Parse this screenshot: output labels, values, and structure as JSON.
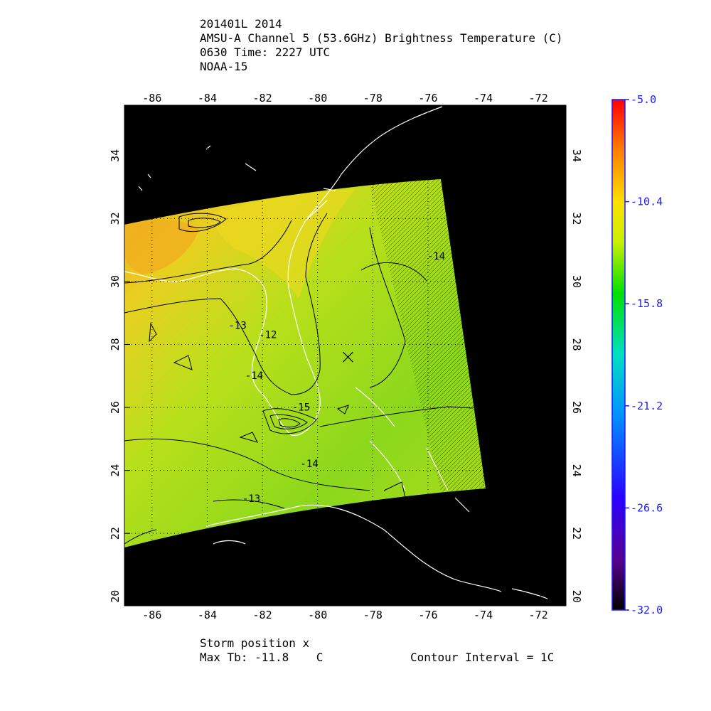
{
  "header": {
    "line1": "201401L 2014",
    "line2": "AMSU-A Channel 5 (53.6GHz) Brightness Temperature (C)",
    "line3": "0630 Time: 2227 UTC",
    "line4": "NOAA-15"
  },
  "map": {
    "lon_range": [
      -87,
      -71
    ],
    "lat_range": [
      19.7,
      35.6
    ],
    "lon_ticks": [
      -86,
      -84,
      -82,
      -80,
      -78,
      -76,
      -74,
      -72
    ],
    "lat_ticks": [
      20,
      22,
      24,
      26,
      28,
      30,
      32,
      34
    ],
    "lon_tick_labels": [
      "-86",
      "-84",
      "-82",
      "-80",
      "-78",
      "-76",
      "-74",
      "-72"
    ],
    "lat_tick_labels": [
      "20",
      "22",
      "24",
      "26",
      "28",
      "30",
      "32",
      "34"
    ],
    "grid": "dotted",
    "storm_position": {
      "lon": -78.9,
      "lat": 27.6,
      "marker": "x-mark"
    },
    "contour_labels": [
      {
        "text": "-12",
        "lon": -81.8,
        "lat": 28.2
      },
      {
        "text": "-13",
        "lon": -82.9,
        "lat": 28.5
      },
      {
        "text": "-14",
        "lon": -82.3,
        "lat": 26.9
      },
      {
        "text": "-15",
        "lon": -80.6,
        "lat": 25.9
      },
      {
        "text": "-14",
        "lon": -80.3,
        "lat": 24.1
      },
      {
        "text": "-13",
        "lon": -82.4,
        "lat": 23.0
      },
      {
        "text": "-14",
        "lon": -75.7,
        "lat": 30.7
      }
    ],
    "colors": {
      "background": "#000000",
      "coastline": "#ffffff",
      "warm": "#f2b01e",
      "mid": "#c8e01a",
      "cool": "#6fd21c"
    }
  },
  "colorbar": {
    "min": -32.0,
    "max": -5.0,
    "ticks": [
      -5.0,
      -10.4,
      -15.8,
      -21.2,
      -26.6,
      -32.0
    ],
    "tick_labels": [
      "-5.0",
      "-10.4",
      "-15.8",
      "-21.2",
      "-26.6",
      "-32.0"
    ],
    "colors": [
      "#000000",
      "#5a0090",
      "#2a00ff",
      "#0090ff",
      "#00e0c0",
      "#00e000",
      "#c8f000",
      "#ffe000",
      "#ff8000",
      "#ff0000"
    ]
  },
  "footer": {
    "storm_label": "Storm position x",
    "max_tb": "Max Tb: -11.8    C",
    "contour_interval": "Contour Interval = 1C"
  }
}
